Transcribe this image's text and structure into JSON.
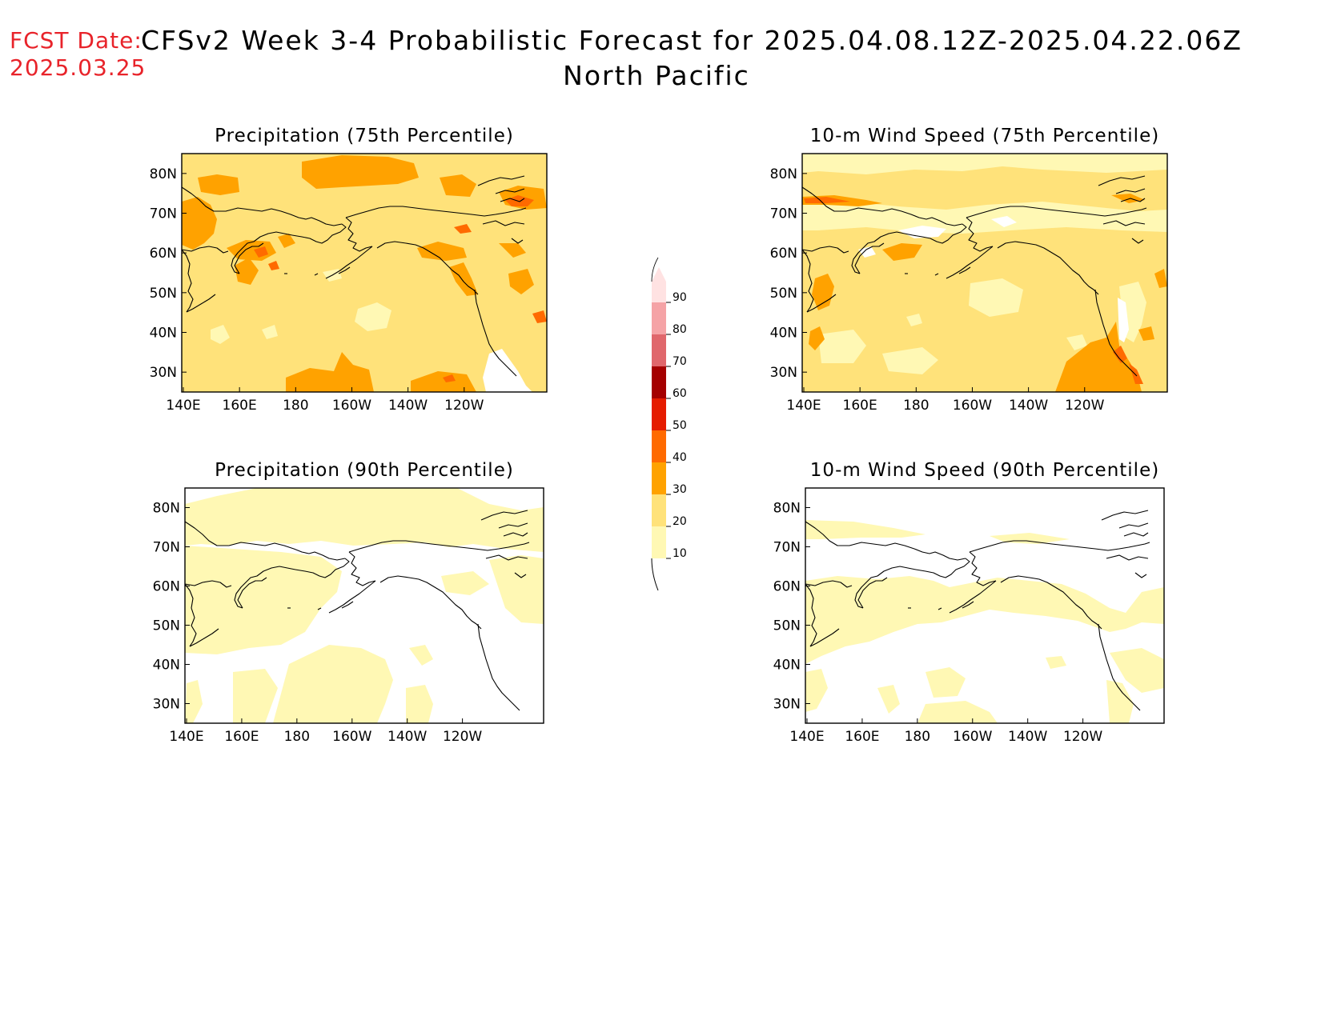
{
  "header": {
    "fcst_label": "FCST Date:",
    "fcst_date": "2025.03.25",
    "title": "CFSv2 Week 3-4 Probabilistic Forecast for 2025.04.08.12Z-2025.04.22.06Z",
    "region": "North Pacific"
  },
  "axes": {
    "lon_ticks": [
      "140E",
      "160E",
      "180",
      "160W",
      "140W",
      "120W"
    ],
    "lat_ticks": [
      "80N",
      "70N",
      "60N",
      "50N",
      "40N",
      "30N"
    ]
  },
  "colorbar": {
    "levels": [
      "10",
      "20",
      "30",
      "40",
      "50",
      "60",
      "70",
      "80",
      "90"
    ],
    "colors": [
      "#fff8b4",
      "#ffe27a",
      "#ffa200",
      "#ff6a00",
      "#e51c00",
      "#a50000",
      "#e0676c",
      "#f5a3a6",
      "#ffe2e2"
    ]
  },
  "panels": [
    {
      "id": "precip-75",
      "title": "Precipitation (75th Percentile)",
      "base_color": "#ffe27a"
    },
    {
      "id": "wind-75",
      "title": "10-m Wind Speed (75th Percentile)",
      "base_color": "#ffe27a"
    },
    {
      "id": "precip-90",
      "title": "Precipitation (90th Percentile)",
      "base_color": "#fff8b4"
    },
    {
      "id": "wind-90",
      "title": "10-m Wind Speed (90th Percentile)",
      "base_color": "#fff8b4"
    }
  ]
}
